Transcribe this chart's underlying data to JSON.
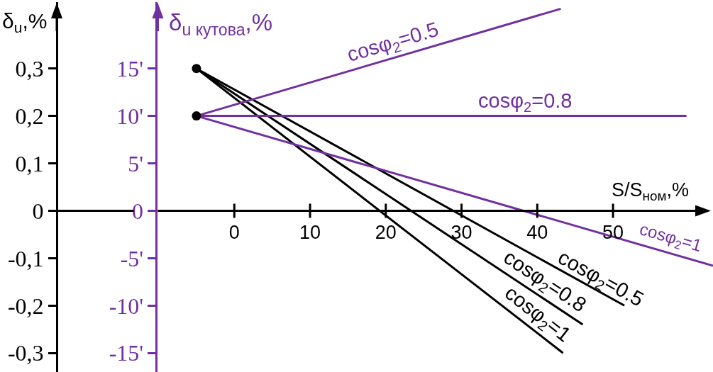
{
  "chart_data": {
    "type": "line",
    "xlabel": "S/S$_{ном}$,%",
    "ylabel": "δ$_{u}$,%",
    "y2label": "δ$_{u кутова}$,%",
    "xlim": [
      -10.1,
      63.2
    ],
    "xticks": [
      0,
      10,
      20,
      30,
      40,
      50
    ],
    "ylim": [
      -0.34,
      0.44
    ],
    "yticks": [
      {
        "value": -0.3,
        "label": "-0,3"
      },
      {
        "value": -0.2,
        "label": "-0,2"
      },
      {
        "value": -0.1,
        "label": "-0,1"
      },
      0,
      {
        "value": 0.1,
        "label": "0,1"
      },
      {
        "value": 0.2,
        "label": "0,2"
      },
      {
        "value": 0.3,
        "label": "0,3"
      }
    ],
    "y2lim": [
      -17,
      22
    ],
    "y2ticks": [
      {
        "value": -15,
        "label": "-15'"
      },
      {
        "value": -10,
        "label": "-10'"
      },
      {
        "value": -5,
        "label": "-5'"
      },
      0,
      {
        "value": 5,
        "label": "5'"
      },
      {
        "value": 10,
        "label": "10'"
      },
      {
        "value": 15,
        "label": "15'"
      }
    ],
    "legend": false,
    "line_style": "solid",
    "series": [
      {
        "name": "cosφ$_{2}$=0.5",
        "color": "#000000",
        "x": [
          -5,
          51.5
        ],
        "values": [
          0.3,
          -0.2
        ]
      },
      {
        "name": "cosφ$_{2}$=0.8",
        "color": "#000000",
        "x": [
          -5,
          46
        ],
        "values": [
          0.3,
          -0.24
        ]
      },
      {
        "name": "cosφ$_{2}$=1",
        "color": "#000000",
        "x": [
          -5,
          43.4
        ],
        "values": [
          0.3,
          -0.3
        ]
      },
      {
        "name": "cosφ$_{2}$=0.5",
        "color": "#7030a0",
        "x": [
          -5,
          43.1
        ],
        "values": [
          10,
          21.3
        ],
        "axis": "y2"
      },
      {
        "name": "cosφ$_{2}$=0.8",
        "color": "#7030a0",
        "x": [
          -5,
          59.7
        ],
        "values": [
          10,
          10
        ],
        "axis": "y2"
      },
      {
        "name": "cosφ$_{2}$=1",
        "color": "#7030a0",
        "x": [
          -5,
          63.2
        ],
        "values": [
          10,
          -5.8
        ],
        "axis": "y2"
      },
      {
        "type": "scatter",
        "color": "#000000",
        "x": [
          -5,
          -5
        ],
        "values": [
          15,
          10
        ],
        "axis": "y2",
        "marker": "circle"
      }
    ]
  }
}
